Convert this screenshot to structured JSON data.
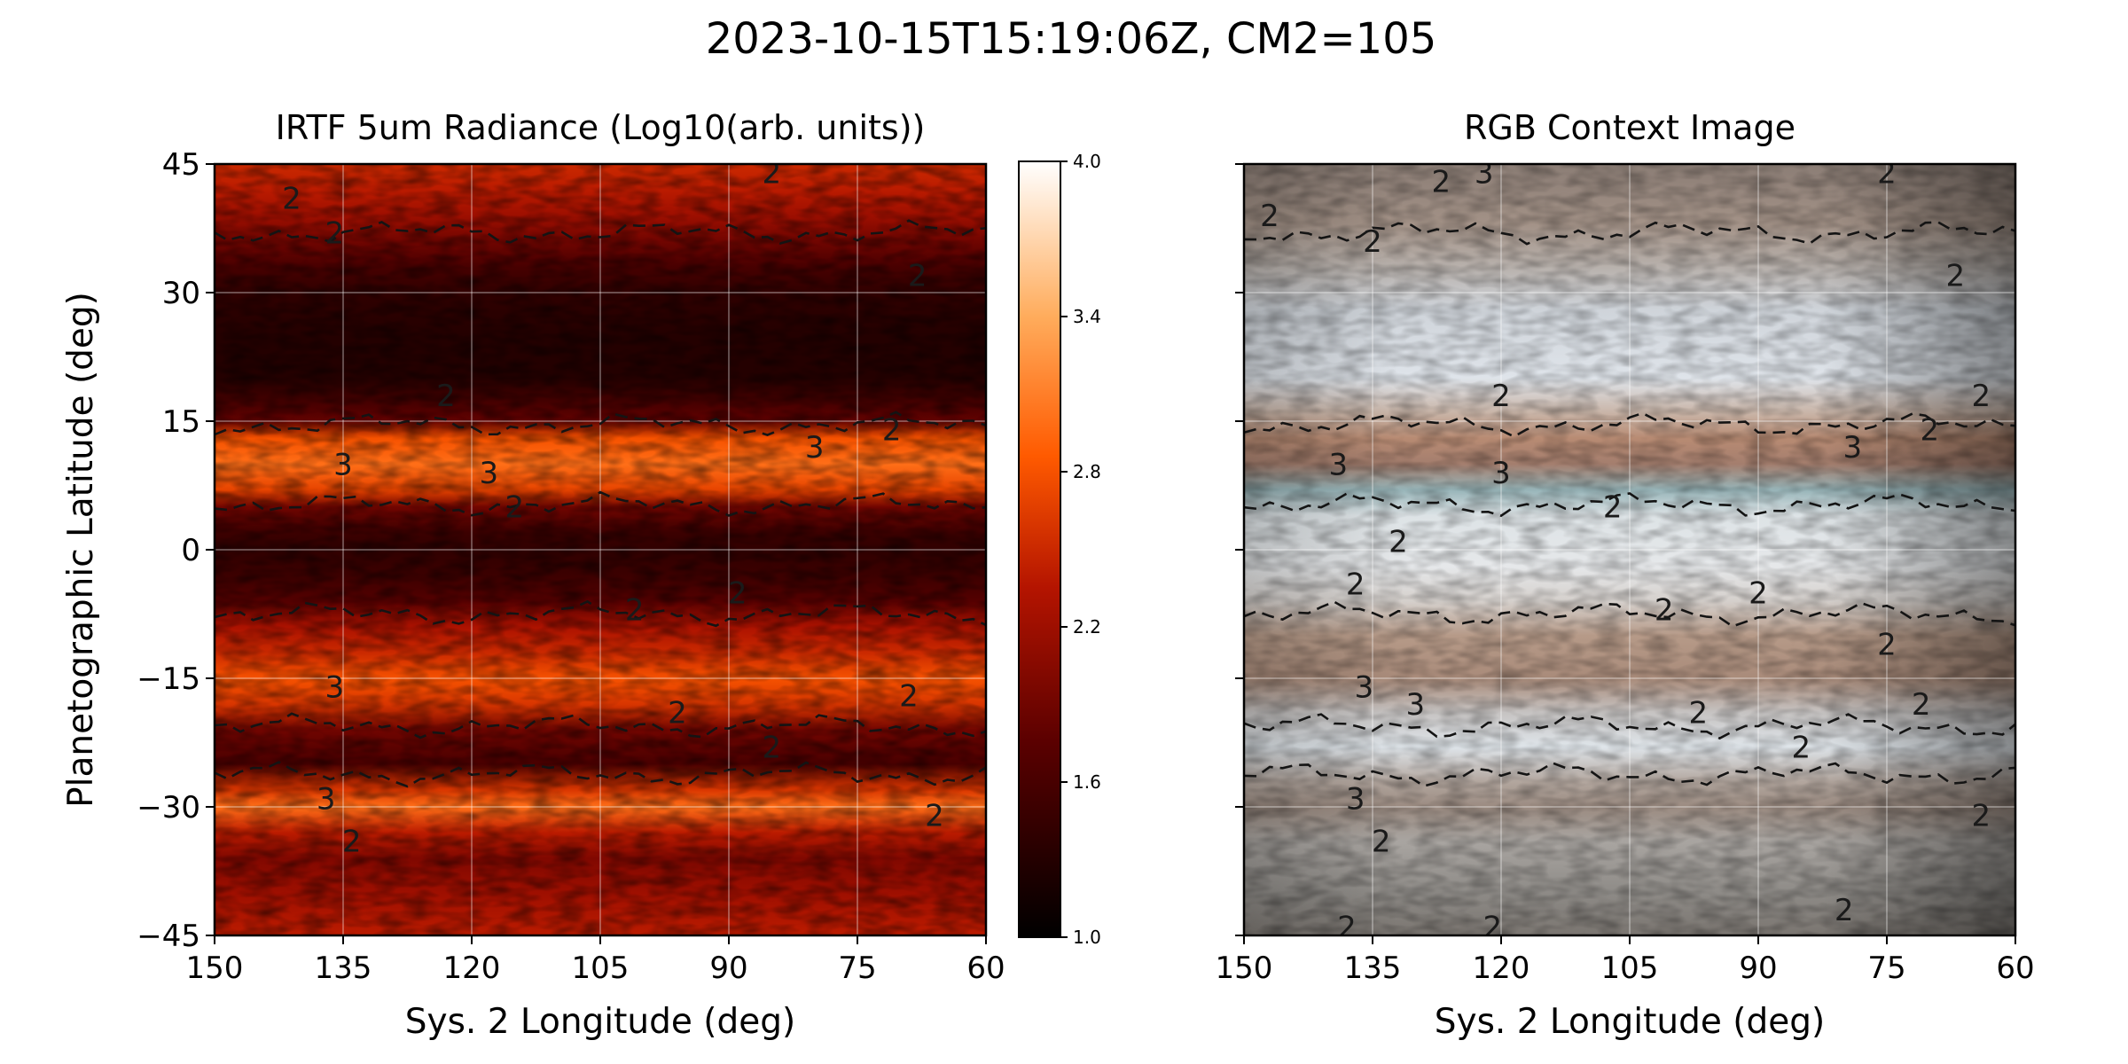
{
  "figure": {
    "suptitle": "2023-10-15T15:19:06Z, CM2=105"
  },
  "chart_data": [
    {
      "type": "heatmap",
      "title": "IRTF 5um Radiance (Log10(arb. units))",
      "xlabel": "Sys. 2 Longitude (deg)",
      "ylabel": "Planetographic Latitude (deg)",
      "xlim": [
        150,
        60
      ],
      "ylim": [
        -45,
        45
      ],
      "xticks": [
        "150",
        "135",
        "120",
        "105",
        "90",
        "75",
        "60"
      ],
      "yticks": [
        "45",
        "30",
        "15",
        "0",
        "−15",
        "−30",
        "−45"
      ],
      "colormap": "gist_heat",
      "colorbar": {
        "range": [
          1.0,
          4.0
        ],
        "ticks": [
          "4.0",
          "3.4",
          "2.8",
          "2.2",
          "1.6",
          "1.0"
        ]
      },
      "latitude_profile": [
        {
          "lat": 45,
          "value": 2.5
        },
        {
          "lat": 42,
          "value": 2.4
        },
        {
          "lat": 39,
          "value": 2.2
        },
        {
          "lat": 36,
          "value": 1.9
        },
        {
          "lat": 33,
          "value": 1.6
        },
        {
          "lat": 30,
          "value": 1.4
        },
        {
          "lat": 25,
          "value": 1.3
        },
        {
          "lat": 20,
          "value": 1.3
        },
        {
          "lat": 17,
          "value": 1.6
        },
        {
          "lat": 15,
          "value": 1.8
        },
        {
          "lat": 13,
          "value": 2.8
        },
        {
          "lat": 10,
          "value": 3.0
        },
        {
          "lat": 7,
          "value": 2.7
        },
        {
          "lat": 5,
          "value": 1.9
        },
        {
          "lat": 2,
          "value": 1.5
        },
        {
          "lat": 0,
          "value": 1.4
        },
        {
          "lat": -3,
          "value": 1.5
        },
        {
          "lat": -6,
          "value": 1.7
        },
        {
          "lat": -9,
          "value": 2.3
        },
        {
          "lat": -12,
          "value": 2.5
        },
        {
          "lat": -15,
          "value": 2.8
        },
        {
          "lat": -18,
          "value": 2.6
        },
        {
          "lat": -21,
          "value": 1.9
        },
        {
          "lat": -25,
          "value": 1.6
        },
        {
          "lat": -28,
          "value": 2.6
        },
        {
          "lat": -30,
          "value": 3.0
        },
        {
          "lat": -33,
          "value": 2.4
        },
        {
          "lat": -36,
          "value": 2.0
        },
        {
          "lat": -40,
          "value": 2.2
        },
        {
          "lat": -45,
          "value": 2.4
        }
      ],
      "contour_labels": [
        {
          "text": "2",
          "lon": 141,
          "lat": 41
        },
        {
          "text": "2",
          "lon": 136,
          "lat": 37
        },
        {
          "text": "2",
          "lon": 85,
          "lat": 44
        },
        {
          "text": "2",
          "lon": 68,
          "lat": 32
        },
        {
          "text": "2",
          "lon": 123,
          "lat": 18
        },
        {
          "text": "3",
          "lon": 135,
          "lat": 10
        },
        {
          "text": "3",
          "lon": 118,
          "lat": 9
        },
        {
          "text": "3",
          "lon": 80,
          "lat": 12
        },
        {
          "text": "2",
          "lon": 71,
          "lat": 14
        },
        {
          "text": "2",
          "lon": 115,
          "lat": 5
        },
        {
          "text": "2",
          "lon": 89,
          "lat": -5
        },
        {
          "text": "2",
          "lon": 101,
          "lat": -7
        },
        {
          "text": "3",
          "lon": 136,
          "lat": -16
        },
        {
          "text": "2",
          "lon": 96,
          "lat": -19
        },
        {
          "text": "2",
          "lon": 85,
          "lat": -23
        },
        {
          "text": "2",
          "lon": 69,
          "lat": -17
        },
        {
          "text": "3",
          "lon": 137,
          "lat": -29
        },
        {
          "text": "2",
          "lon": 134,
          "lat": -34
        },
        {
          "text": "2",
          "lon": 66,
          "lat": -31
        }
      ]
    },
    {
      "type": "heatmap",
      "title": "RGB Context Image",
      "xlabel": "Sys. 2 Longitude (deg)",
      "xlim": [
        150,
        60
      ],
      "ylim": [
        -45,
        45
      ],
      "xticks": [
        "150",
        "135",
        "120",
        "105",
        "90",
        "75",
        "60"
      ],
      "latitude_colors": [
        {
          "lat": 45,
          "color": "#8b7d75"
        },
        {
          "lat": 38,
          "color": "#a39287"
        },
        {
          "lat": 33,
          "color": "#b8b1ac"
        },
        {
          "lat": 28,
          "color": "#cfd4da"
        },
        {
          "lat": 20,
          "color": "#dfe4ea"
        },
        {
          "lat": 16,
          "color": "#c9b5a8"
        },
        {
          "lat": 13,
          "color": "#b88b73"
        },
        {
          "lat": 10,
          "color": "#a47e6e"
        },
        {
          "lat": 7,
          "color": "#97b4b8"
        },
        {
          "lat": 4,
          "color": "#dde3e6"
        },
        {
          "lat": -2,
          "color": "#e6e8ea"
        },
        {
          "lat": -6,
          "color": "#d5d0cc"
        },
        {
          "lat": -10,
          "color": "#b69a88"
        },
        {
          "lat": -15,
          "color": "#a98b7a"
        },
        {
          "lat": -19,
          "color": "#c6c3c2"
        },
        {
          "lat": -23,
          "color": "#dfe5ea"
        },
        {
          "lat": -27,
          "color": "#b3a79f"
        },
        {
          "lat": -30,
          "color": "#9b8b81"
        },
        {
          "lat": -34,
          "color": "#a9a5a1"
        },
        {
          "lat": -40,
          "color": "#8e8b87"
        },
        {
          "lat": -45,
          "color": "#7a7570"
        }
      ],
      "contour_labels": [
        {
          "text": "2",
          "lon": 147,
          "lat": 39
        },
        {
          "text": "2",
          "lon": 135,
          "lat": 36
        },
        {
          "text": "3",
          "lon": 122,
          "lat": 44
        },
        {
          "text": "2",
          "lon": 127,
          "lat": 43
        },
        {
          "text": "2",
          "lon": 75,
          "lat": 44
        },
        {
          "text": "2",
          "lon": 67,
          "lat": 32
        },
        {
          "text": "2",
          "lon": 64,
          "lat": 18
        },
        {
          "text": "2",
          "lon": 120,
          "lat": 18
        },
        {
          "text": "3",
          "lon": 139,
          "lat": 10
        },
        {
          "text": "3",
          "lon": 120,
          "lat": 9
        },
        {
          "text": "2",
          "lon": 107,
          "lat": 5
        },
        {
          "text": "3",
          "lon": 79,
          "lat": 12
        },
        {
          "text": "2",
          "lon": 70,
          "lat": 14
        },
        {
          "text": "2",
          "lon": 137,
          "lat": -4
        },
        {
          "text": "2",
          "lon": 132,
          "lat": 1
        },
        {
          "text": "2",
          "lon": 90,
          "lat": -5
        },
        {
          "text": "2",
          "lon": 101,
          "lat": -7
        },
        {
          "text": "2",
          "lon": 75,
          "lat": -11
        },
        {
          "text": "3",
          "lon": 136,
          "lat": -16
        },
        {
          "text": "3",
          "lon": 130,
          "lat": -18
        },
        {
          "text": "2",
          "lon": 97,
          "lat": -19
        },
        {
          "text": "2",
          "lon": 85,
          "lat": -23
        },
        {
          "text": "2",
          "lon": 71,
          "lat": -18
        },
        {
          "text": "3",
          "lon": 137,
          "lat": -29
        },
        {
          "text": "2",
          "lon": 134,
          "lat": -34
        },
        {
          "text": "2",
          "lon": 64,
          "lat": -31
        },
        {
          "text": "2",
          "lon": 138,
          "lat": -44
        },
        {
          "text": "2",
          "lon": 121,
          "lat": -44
        },
        {
          "text": "2",
          "lon": 80,
          "lat": -42
        }
      ]
    }
  ]
}
